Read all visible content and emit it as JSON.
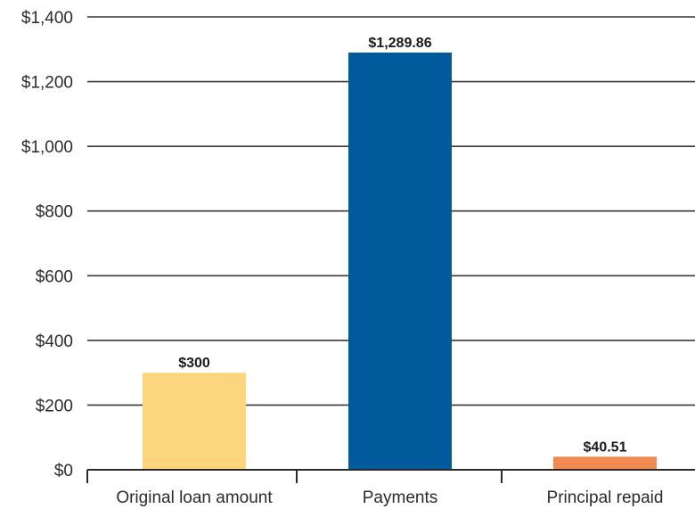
{
  "chart_data": {
    "type": "bar",
    "title": "",
    "xlabel": "",
    "ylabel": "",
    "categories": [
      "Original loan amount",
      "Payments",
      "Principal repaid"
    ],
    "values": [
      300,
      1289.86,
      40.51
    ],
    "value_labels": [
      "$300",
      "$1,289.86",
      "$40.51"
    ],
    "ylim": [
      0,
      1400
    ],
    "yticks": [
      0,
      200,
      400,
      600,
      800,
      1000,
      1200,
      1400
    ],
    "ytick_labels": [
      "$0",
      "$200",
      "$400",
      "$600",
      "$800",
      "$1,000",
      "$1,200",
      "$1,400"
    ],
    "grid": true,
    "legend": "none",
    "colors": [
      "#FDD57E",
      "#005A9C",
      "#F08A50"
    ]
  }
}
